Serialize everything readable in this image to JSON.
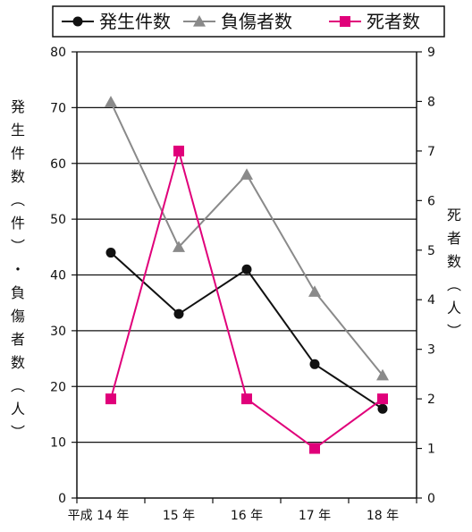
{
  "chart_data": {
    "type": "line",
    "categories": [
      "平成 14 年",
      "15 年",
      "16 年",
      "17 年",
      "18 年"
    ],
    "left_axis": {
      "label_chars": [
        "発",
        "生",
        "件",
        "数",
        "︵",
        "件",
        "︶",
        "・",
        "負",
        "傷",
        "者",
        "数",
        "︵",
        "人",
        "︶"
      ],
      "range": [
        0,
        80
      ],
      "ticks": [
        0,
        10,
        20,
        30,
        40,
        50,
        60,
        70,
        80
      ]
    },
    "right_axis": {
      "label_chars": [
        "死",
        "者",
        "数",
        "︵",
        "人",
        "︶"
      ],
      "range": [
        0,
        9
      ],
      "ticks": [
        0,
        1,
        2,
        3,
        4,
        5,
        6,
        7,
        8,
        9
      ]
    },
    "grid": "horizontal",
    "legend_position": "top",
    "series": [
      {
        "name": "発生件数",
        "axis": "left",
        "values": [
          44,
          33,
          41,
          24,
          16
        ],
        "color": "#111111",
        "marker": "circle"
      },
      {
        "name": "負傷者数",
        "axis": "left",
        "values": [
          71,
          45,
          58,
          37,
          22
        ],
        "color": "#8a8a8a",
        "marker": "triangle"
      },
      {
        "name": "死者数",
        "axis": "right",
        "values": [
          2,
          7,
          2,
          1,
          2
        ],
        "color": "#e0007a",
        "marker": "square"
      }
    ]
  }
}
